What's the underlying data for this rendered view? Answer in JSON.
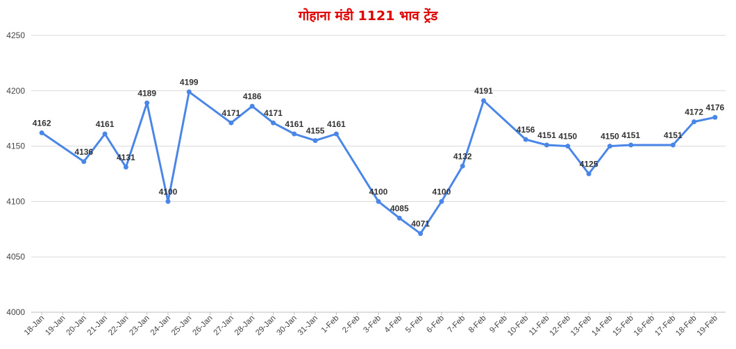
{
  "chart_data": {
    "type": "line",
    "title": "गोहाना मंडी 1121 भाव ट्रेंड",
    "xlabel": "",
    "ylabel": "",
    "ylim": [
      4000,
      4250
    ],
    "yticks": [
      4000,
      4050,
      4100,
      4150,
      4200,
      4250
    ],
    "grid": true,
    "legend": "none",
    "categories": [
      "18-Jan",
      "19-Jan",
      "20-Jan",
      "21-Jan",
      "22-Jan",
      "23-Jan",
      "24-Jan",
      "25-Jan",
      "26-Jan",
      "27-Jan",
      "28-Jan",
      "29-Jan",
      "30-Jan",
      "31-Jan",
      "1-Feb",
      "2-Feb",
      "3-Feb",
      "4-Feb",
      "5-Feb",
      "6-Feb",
      "7-Feb",
      "8-Feb",
      "9-Feb",
      "10-Feb",
      "11-Feb",
      "12-Feb",
      "13-Feb",
      "14-Feb",
      "15-Feb",
      "16-Feb",
      "17-Feb",
      "18-Feb",
      "19-Feb"
    ],
    "series": [
      {
        "color": "#4a86e8",
        "values": [
          4162,
          null,
          4136,
          4161,
          4131,
          4189,
          4100,
          4199,
          null,
          4171,
          4186,
          4171,
          4161,
          4155,
          4161,
          null,
          4100,
          4085,
          4071,
          4100,
          4132,
          4191,
          null,
          4156,
          4151,
          4150,
          4125,
          4150,
          4151,
          null,
          4151,
          4172,
          4176
        ]
      }
    ]
  }
}
